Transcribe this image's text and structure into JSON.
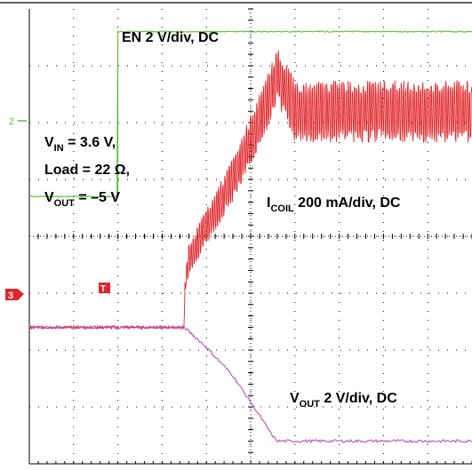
{
  "chart_data": {
    "type": "line",
    "grid": true,
    "divisions": {
      "x": 10,
      "y": 8
    },
    "annotations": {
      "en": "EN 2 V/div, DC",
      "icoil_main": "I",
      "icoil_sub": "COIL",
      "icoil_rest": " 200 mA/div, DC",
      "vout_main": "V",
      "vout_sub": "OUT",
      "vout_rest": " 2 V/div, DC",
      "vin_main": "V",
      "vin_sub": "IN",
      "vin_rest": " = 3.6 V,",
      "load": "Load = 22 Ω,",
      "voutset_main": "V",
      "voutset_sub": "OUT",
      "voutset_rest": " = –5 V"
    },
    "markers": {
      "ch2": "2",
      "ch3": "3",
      "trigger": "T"
    },
    "colors": {
      "background": "#ffffff",
      "grid": "#000000",
      "en": "#5fbf3a",
      "icoil": "#e0262b",
      "vout": "#b84fc0",
      "ch3_marker": "#e0262b",
      "ch2_marker": "#5fbf3a"
    },
    "series": [
      {
        "id": "en",
        "x": [
          0,
          2.0,
          2.0,
          10
        ],
        "y": [
          4.7,
          4.7,
          7.6,
          7.6
        ]
      },
      {
        "id": "icoil",
        "x": [
          0,
          3.5,
          3.5,
          3.52,
          3.6,
          4.6,
          5.4,
          5.6,
          6.0,
          10
        ],
        "y": [
          2.4,
          2.4,
          2.5,
          3.2,
          3.6,
          5.0,
          6.4,
          6.85,
          6.2,
          6.2
        ],
        "ripple": [
          0.03,
          0.03,
          0.03,
          0.15,
          0.25,
          0.35,
          0.45,
          0.45,
          0.5,
          0.5
        ]
      },
      {
        "id": "vout",
        "x": [
          0,
          3.5,
          4.0,
          4.6,
          5.2,
          5.5,
          5.6,
          10
        ],
        "y": [
          2.4,
          2.4,
          2.05,
          1.55,
          0.85,
          0.48,
          0.4,
          0.4
        ]
      }
    ]
  }
}
